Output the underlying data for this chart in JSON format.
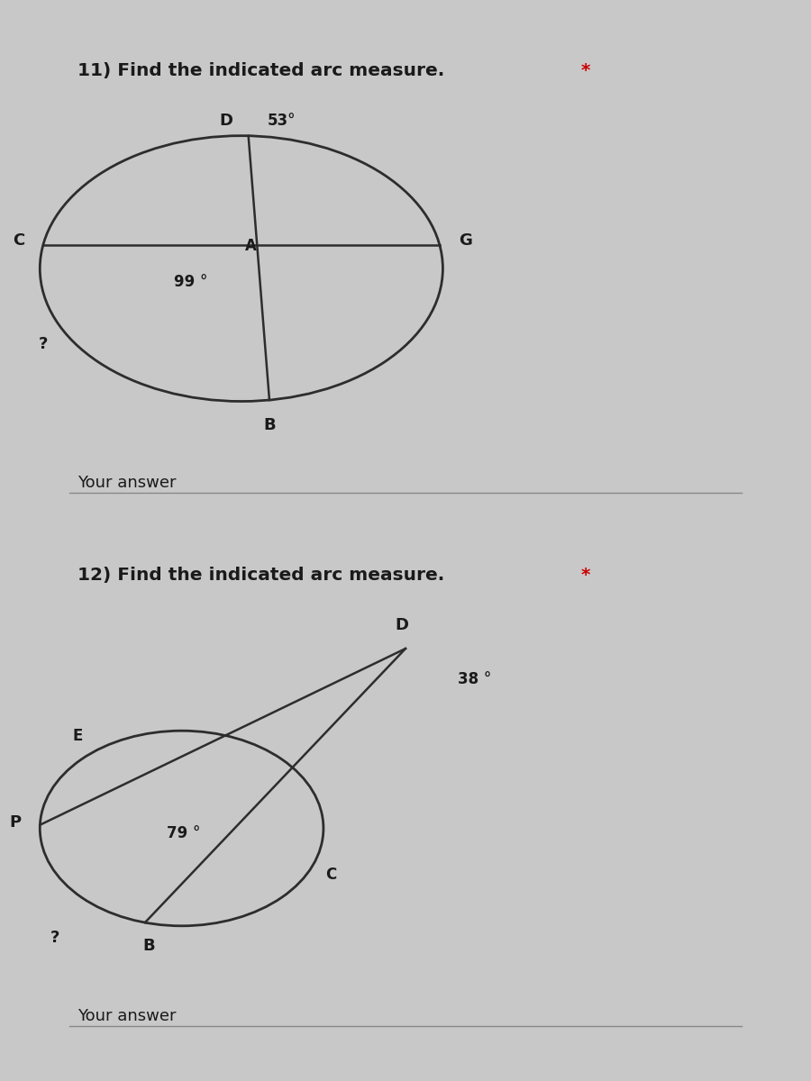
{
  "bg_outer": "#c8c8c8",
  "bg_panel": "#d4d4d4",
  "line_color": "#2d2d2d",
  "text_color": "#1a1a1a",
  "red_color": "#cc0000",
  "q11_title": "11) Find the indicated arc measure.",
  "q11_star": "*",
  "q11_angle_label": "53°",
  "q11_inner_angle": "99 °",
  "q11_question_mark": "?",
  "q12_title": "12) Find the indicated arc measure.",
  "q12_star": "*",
  "q12_angle_label": "38 °",
  "q12_inner_angle": "79 °",
  "q12_question_mark": "?",
  "your_answer": "Your answer"
}
